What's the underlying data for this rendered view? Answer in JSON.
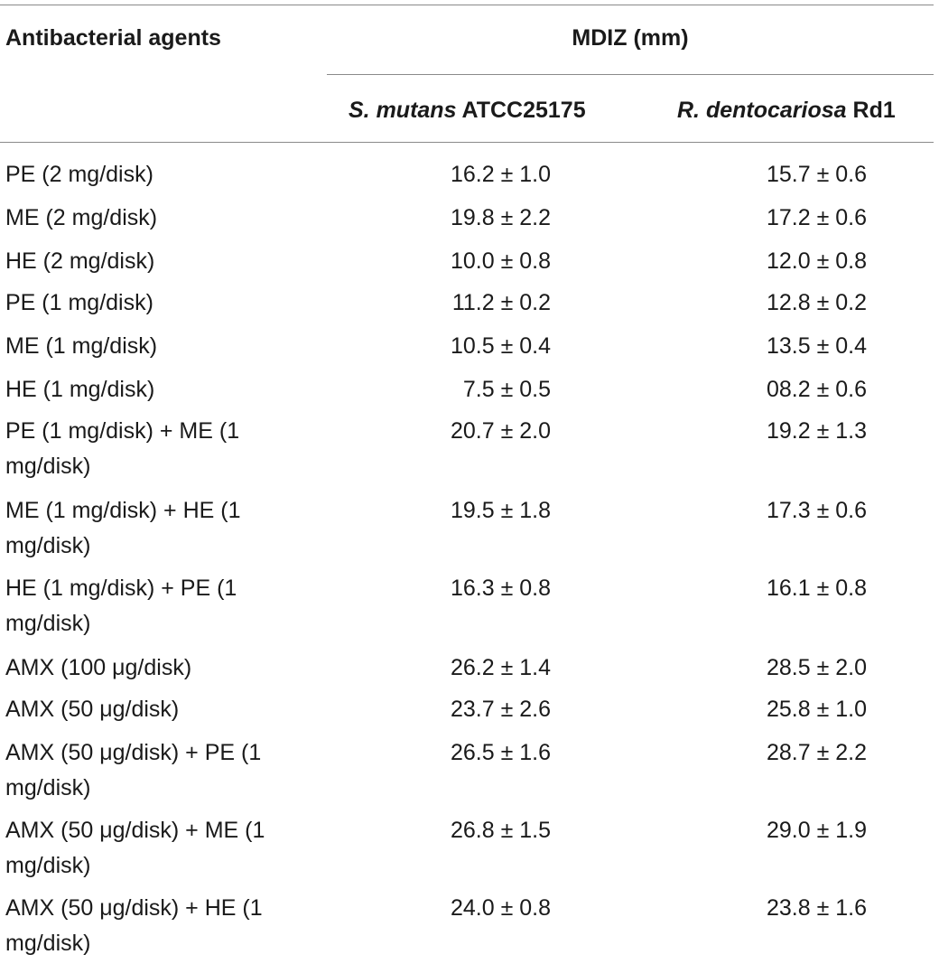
{
  "table": {
    "headers": {
      "agents": "Antibacterial agents",
      "mdiz": "MDIZ (mm)",
      "col1_species": "S. mutans",
      "col1_strain": " ATCC25175",
      "col2_species": "R. dentocariosa",
      "col2_strain": " Rd1"
    },
    "rows": [
      {
        "agent": "PE (2 mg/disk)",
        "smutans": "16.2 ± 1.0",
        "rdentocariosa": "15.7 ± 0.6"
      },
      {
        "agent": "ME (2 mg/disk)",
        "smutans": "19.8 ± 2.2",
        "rdentocariosa": "17.2 ± 0.6"
      },
      {
        "agent": "HE (2 mg/disk)",
        "smutans": "10.0 ± 0.8",
        "rdentocariosa": "12.0 ± 0.8"
      },
      {
        "agent": "PE (1 mg/disk)",
        "smutans": "11.2 ± 0.2",
        "rdentocariosa": "12.8 ± 0.2"
      },
      {
        "agent": "ME (1 mg/disk)",
        "smutans": "10.5 ± 0.4",
        "rdentocariosa": "13.5 ± 0.4"
      },
      {
        "agent": "HE (1 mg/disk)",
        "smutans": "7.5 ± 0.5",
        "rdentocariosa": "08.2 ± 0.6"
      },
      {
        "agent": "PE (1 mg/disk) + ME (1 mg/disk)",
        "smutans": "20.7 ± 2.0",
        "rdentocariosa": "19.2 ± 1.3"
      },
      {
        "agent": "ME (1 mg/disk) + HE (1 mg/disk)",
        "smutans": "19.5 ± 1.8",
        "rdentocariosa": "17.3 ± 0.6"
      },
      {
        "agent": "HE (1 mg/disk) + PE (1 mg/disk)",
        "smutans": "16.3 ± 0.8",
        "rdentocariosa": "16.1 ± 0.8"
      },
      {
        "agent": "AMX (100 μg/disk)",
        "smutans": "26.2 ± 1.4",
        "rdentocariosa": "28.5 ± 2.0"
      },
      {
        "agent": "AMX (50 μg/disk)",
        "smutans": "23.7 ± 2.6",
        "rdentocariosa": "25.8 ± 1.0"
      },
      {
        "agent": "AMX (50 μg/disk) + PE (1 mg/disk)",
        "smutans": "26.5 ± 1.6",
        "rdentocariosa": "28.7 ± 2.2"
      },
      {
        "agent": "AMX (50 μg/disk) + ME (1 mg/disk)",
        "smutans": "26.8 ± 1.5",
        "rdentocariosa": "29.0 ± 1.9"
      },
      {
        "agent": "AMX (50 μg/disk) + HE (1 mg/disk)",
        "smutans": "24.0 ± 0.8",
        "rdentocariosa": "23.8 ± 1.6"
      }
    ]
  }
}
